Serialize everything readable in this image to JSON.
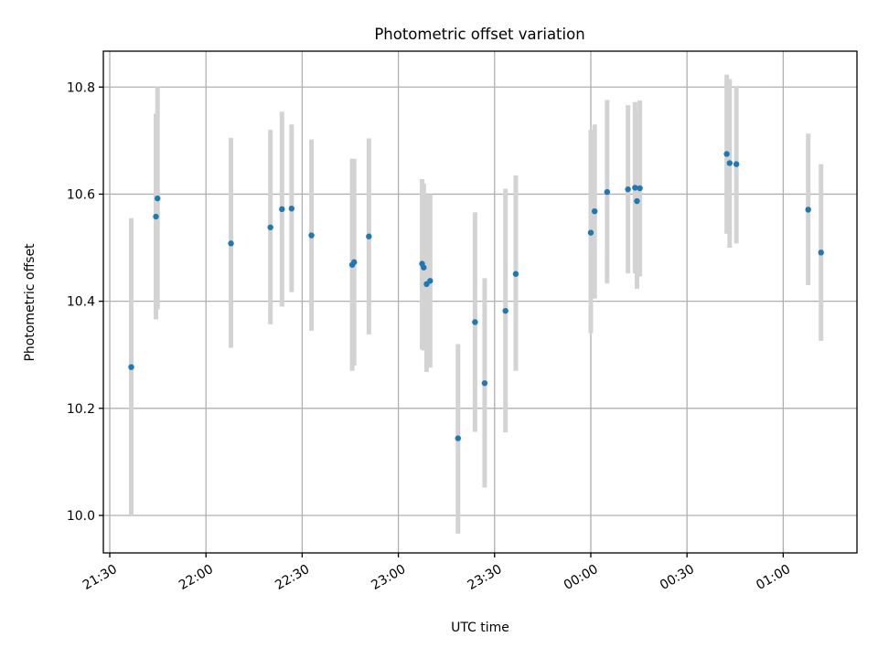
{
  "chart_data": {
    "type": "scatter",
    "title": "Photometric offset variation",
    "xlabel": "UTC time",
    "ylabel": "Photometric offset",
    "x_unit": "minutes after 21:30 UTC",
    "xlim": [
      -2,
      233
    ],
    "ylim": [
      9.93,
      10.867
    ],
    "grid": true,
    "x_ticks": [
      {
        "value": 0,
        "label": "21:30"
      },
      {
        "value": 30,
        "label": "22:00"
      },
      {
        "value": 60,
        "label": "22:30"
      },
      {
        "value": 90,
        "label": "23:00"
      },
      {
        "value": 120,
        "label": "23:30"
      },
      {
        "value": 150,
        "label": "00:00"
      },
      {
        "value": 180,
        "label": "00:30"
      },
      {
        "value": 210,
        "label": "01:00"
      }
    ],
    "y_ticks": [
      {
        "value": 10.0,
        "label": "10.0"
      },
      {
        "value": 10.2,
        "label": "10.2"
      },
      {
        "value": 10.4,
        "label": "10.4"
      },
      {
        "value": 10.6,
        "label": "10.6"
      },
      {
        "value": 10.8,
        "label": "10.8"
      }
    ],
    "colors": {
      "points": "#1f77b4",
      "errorbars": "#d3d3d3",
      "grid": "#b0b0b0"
    },
    "points": [
      {
        "x": 6.7,
        "y": 10.277,
        "lo": 10.0,
        "hi": 10.555
      },
      {
        "x": 14.4,
        "y": 10.558,
        "lo": 10.366,
        "hi": 10.75
      },
      {
        "x": 14.9,
        "y": 10.592,
        "lo": 10.385,
        "hi": 10.8
      },
      {
        "x": 37.8,
        "y": 10.508,
        "lo": 10.313,
        "hi": 10.705
      },
      {
        "x": 50.1,
        "y": 10.538,
        "lo": 10.357,
        "hi": 10.72
      },
      {
        "x": 53.7,
        "y": 10.572,
        "lo": 10.39,
        "hi": 10.754
      },
      {
        "x": 56.7,
        "y": 10.573,
        "lo": 10.417,
        "hi": 10.73
      },
      {
        "x": 62.9,
        "y": 10.523,
        "lo": 10.345,
        "hi": 10.702
      },
      {
        "x": 75.6,
        "y": 10.468,
        "lo": 10.27,
        "hi": 10.666
      },
      {
        "x": 76.2,
        "y": 10.473,
        "lo": 10.28,
        "hi": 10.666
      },
      {
        "x": 80.8,
        "y": 10.521,
        "lo": 10.338,
        "hi": 10.704
      },
      {
        "x": 97.4,
        "y": 10.47,
        "lo": 10.31,
        "hi": 10.628
      },
      {
        "x": 97.9,
        "y": 10.463,
        "lo": 10.308,
        "hi": 10.62
      },
      {
        "x": 98.8,
        "y": 10.432,
        "lo": 10.268,
        "hi": 10.6
      },
      {
        "x": 99.9,
        "y": 10.438,
        "lo": 10.276,
        "hi": 10.6
      },
      {
        "x": 108.6,
        "y": 10.144,
        "lo": 9.966,
        "hi": 10.32
      },
      {
        "x": 113.9,
        "y": 10.361,
        "lo": 10.156,
        "hi": 10.566
      },
      {
        "x": 116.9,
        "y": 10.247,
        "lo": 10.052,
        "hi": 10.443
      },
      {
        "x": 123.4,
        "y": 10.382,
        "lo": 10.155,
        "hi": 10.61
      },
      {
        "x": 126.6,
        "y": 10.451,
        "lo": 10.27,
        "hi": 10.635
      },
      {
        "x": 150.0,
        "y": 10.528,
        "lo": 10.34,
        "hi": 10.72
      },
      {
        "x": 151.2,
        "y": 10.568,
        "lo": 10.405,
        "hi": 10.73
      },
      {
        "x": 155.1,
        "y": 10.604,
        "lo": 10.433,
        "hi": 10.776
      },
      {
        "x": 161.6,
        "y": 10.609,
        "lo": 10.452,
        "hi": 10.766
      },
      {
        "x": 163.8,
        "y": 10.612,
        "lo": 10.452,
        "hi": 10.772
      },
      {
        "x": 164.4,
        "y": 10.587,
        "lo": 10.423,
        "hi": 10.752
      },
      {
        "x": 165.3,
        "y": 10.611,
        "lo": 10.446,
        "hi": 10.775
      },
      {
        "x": 192.4,
        "y": 10.675,
        "lo": 10.526,
        "hi": 10.823
      },
      {
        "x": 193.3,
        "y": 10.658,
        "lo": 10.5,
        "hi": 10.815
      },
      {
        "x": 195.4,
        "y": 10.656,
        "lo": 10.508,
        "hi": 10.802
      },
      {
        "x": 217.8,
        "y": 10.571,
        "lo": 10.43,
        "hi": 10.713
      },
      {
        "x": 221.8,
        "y": 10.491,
        "lo": 10.326,
        "hi": 10.656
      }
    ]
  }
}
